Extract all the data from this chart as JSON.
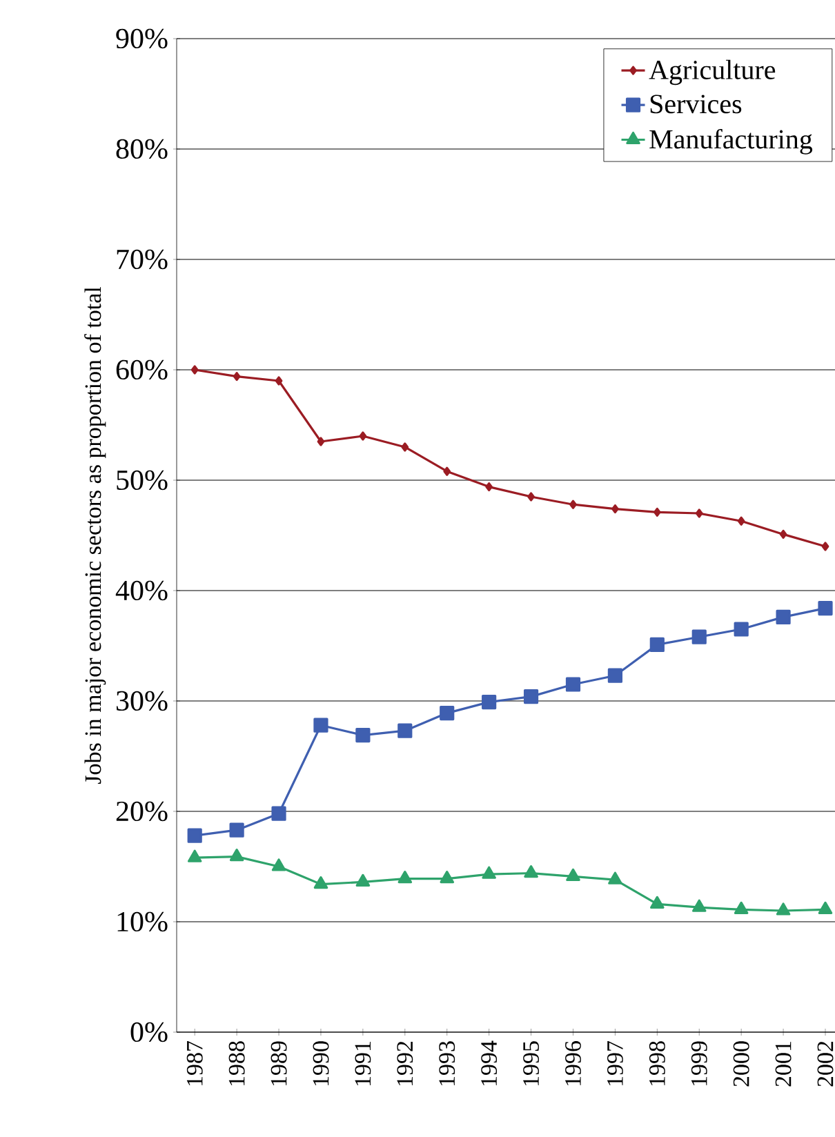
{
  "chart_data": {
    "type": "line",
    "ylabel": "Jobs in major economic sectors as proportion of total",
    "categories": [
      "1987",
      "1988",
      "1989",
      "1990",
      "1991",
      "1992",
      "1993",
      "1994",
      "1995",
      "1996",
      "1997",
      "1998",
      "1999",
      "2000",
      "2001",
      "2002"
    ],
    "series": [
      {
        "name": "Agriculture",
        "color": "#9b1c23",
        "marker": "diamond",
        "values": [
          60.0,
          59.4,
          59.0,
          53.5,
          54.0,
          53.0,
          50.8,
          49.4,
          48.5,
          47.8,
          47.4,
          47.1,
          47.0,
          46.3,
          45.1,
          44.0
        ]
      },
      {
        "name": "Services",
        "color": "#3f5fb0",
        "marker": "square",
        "values": [
          17.8,
          18.3,
          19.8,
          27.8,
          26.9,
          27.3,
          28.9,
          29.9,
          30.4,
          31.5,
          32.3,
          35.1,
          35.8,
          36.5,
          37.6,
          38.4
        ]
      },
      {
        "name": "Manufacturing",
        "color": "#2ea36b",
        "marker": "triangle",
        "values": [
          15.8,
          15.9,
          15.0,
          13.4,
          13.6,
          13.9,
          13.9,
          14.3,
          14.4,
          14.1,
          13.8,
          11.6,
          11.3,
          11.1,
          11.0,
          11.1
        ]
      }
    ],
    "ylim": [
      0,
      90
    ],
    "yticks": [
      {
        "value": 0,
        "label": "0%"
      },
      {
        "value": 10,
        "label": "10%"
      },
      {
        "value": 20,
        "label": "20%"
      },
      {
        "value": 30,
        "label": "30%"
      },
      {
        "value": 40,
        "label": "40%"
      },
      {
        "value": 50,
        "label": "50%"
      },
      {
        "value": 60,
        "label": "60%"
      },
      {
        "value": 70,
        "label": "70%"
      },
      {
        "value": 80,
        "label": "80%"
      },
      {
        "value": 90,
        "label": "90%"
      }
    ],
    "grid": "y",
    "legend": "top right",
    "line_style": "solid"
  }
}
